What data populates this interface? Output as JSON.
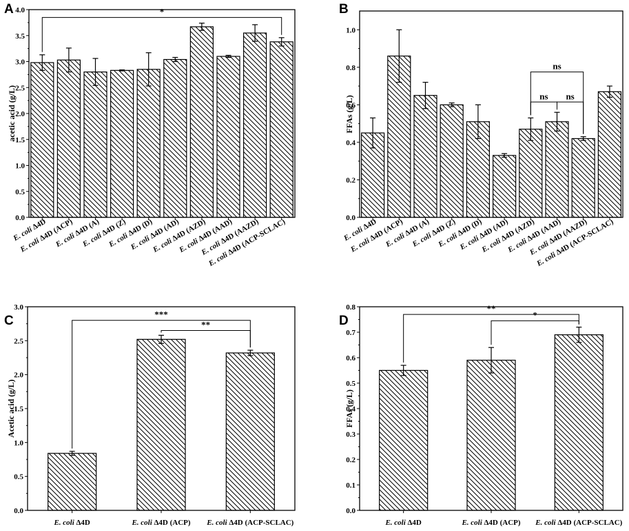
{
  "figure": {
    "palette": {
      "ink": "#000000",
      "background": "#ffffff"
    }
  },
  "chart_data": [
    {
      "panel": "A",
      "type": "bar",
      "ylabel": "acetic acid (g/L)",
      "ylim": [
        0,
        4.0
      ],
      "yticks": [
        "0.0",
        "0.5",
        "1.0",
        "1.5",
        "2.0",
        "2.5",
        "3.0",
        "3.5",
        "4.0"
      ],
      "categories": [
        {
          "italic": "E. coli",
          "rest": " Δ4D"
        },
        {
          "italic": "E. coli",
          "rest": " Δ4D (ACP)"
        },
        {
          "italic": "E. coli",
          "rest": " Δ4D (A)"
        },
        {
          "italic": "E. coli",
          "rest": " Δ4D (Z)"
        },
        {
          "italic": "E. coli",
          "rest": " Δ4D (D)"
        },
        {
          "italic": "E. coli",
          "rest": " Δ4D (AD)"
        },
        {
          "italic": "E. coli",
          "rest": " Δ4D (AZD)"
        },
        {
          "italic": "E. coli",
          "rest": " Δ4D (AAD)"
        },
        {
          "italic": "E. coli",
          "rest": " Δ4D (AAZD)"
        },
        {
          "italic": "E. coli",
          "rest": " Δ4D (ACP-SCLAC)"
        }
      ],
      "values": [
        2.98,
        3.03,
        2.8,
        2.83,
        2.85,
        3.04,
        3.67,
        3.1,
        3.55,
        3.38
      ],
      "errors": [
        0.15,
        0.23,
        0.26,
        0.01,
        0.32,
        0.04,
        0.07,
        0.02,
        0.16,
        0.08
      ],
      "significance": [
        {
          "from": 0,
          "to": 9,
          "label": "*",
          "y": 3.85
        }
      ]
    },
    {
      "panel": "B",
      "type": "bar",
      "ylabel": "FFAs (g/L)",
      "ylim": [
        0,
        1.1
      ],
      "yticks": [
        "0.0",
        "0.2",
        "0.4",
        "0.6",
        "0.8",
        "1.0"
      ],
      "categories": [
        {
          "italic": "E. coli",
          "rest": " Δ4D"
        },
        {
          "italic": "E. coli",
          "rest": " Δ4D (ACP)"
        },
        {
          "italic": "E. coli",
          "rest": " Δ4D (A)"
        },
        {
          "italic": "E. coli",
          "rest": " Δ4D (Z)"
        },
        {
          "italic": "E. coli",
          "rest": " Δ4D (D)"
        },
        {
          "italic": "E. coli",
          "rest": " Δ4D (AD)"
        },
        {
          "italic": "E. coli",
          "rest": " Δ4D (AZD)"
        },
        {
          "italic": "E. coli",
          "rest": " Δ4D (AAD)"
        },
        {
          "italic": "E. coli",
          "rest": " Δ4D (AAZD)"
        },
        {
          "italic": "E. coli",
          "rest": " Δ4D (ACP-SCLAC)"
        }
      ],
      "values": [
        0.45,
        0.86,
        0.65,
        0.6,
        0.51,
        0.33,
        0.47,
        0.51,
        0.42,
        0.67
      ],
      "errors": [
        0.08,
        0.14,
        0.07,
        0.01,
        0.09,
        0.01,
        0.06,
        0.05,
        0.01,
        0.03
      ],
      "significance": [
        {
          "from": 6,
          "to": 8,
          "label": "ns",
          "y": 0.775
        },
        {
          "from": 6,
          "to": 7,
          "label": "ns",
          "y": 0.615
        },
        {
          "from": 7,
          "to": 8,
          "label": "ns",
          "y": 0.615
        }
      ]
    },
    {
      "panel": "C",
      "type": "bar",
      "ylabel": "Acetic acid (g/L)",
      "ylim": [
        0,
        3.0
      ],
      "yticks": [
        "0.0",
        "0.5",
        "1.0",
        "1.5",
        "2.0",
        "2.5",
        "3.0"
      ],
      "categories": [
        {
          "italic": "E. coli",
          "rest": " Δ4D"
        },
        {
          "italic": "E. coli",
          "rest": " Δ4D (ACP)"
        },
        {
          "italic": "E. coli",
          "rest": " Δ4D (ACP-SCLAC)"
        }
      ],
      "values": [
        0.84,
        2.52,
        2.32
      ],
      "errors": [
        0.03,
        0.06,
        0.04
      ],
      "significance": [
        {
          "from": 0,
          "to": 2,
          "label": "***",
          "y": 2.8
        },
        {
          "from": 1,
          "to": 2,
          "label": "**",
          "y": 2.65
        }
      ]
    },
    {
      "panel": "D",
      "type": "bar",
      "ylabel": "FFAs (g/L)",
      "ylim": [
        0,
        0.8
      ],
      "yticks": [
        "0.0",
        "0.1",
        "0.2",
        "0.3",
        "0.4",
        "0.5",
        "0.6",
        "0.7",
        "0.8"
      ],
      "categories": [
        {
          "italic": "E. coli",
          "rest": " Δ4D"
        },
        {
          "italic": "E. coli",
          "rest": " Δ4D (ACP)"
        },
        {
          "italic": "E. coli",
          "rest": " Δ4D (ACP-SCLAC)"
        }
      ],
      "values": [
        0.55,
        0.59,
        0.69
      ],
      "errors": [
        0.02,
        0.05,
        0.03
      ],
      "significance": [
        {
          "from": 0,
          "to": 2,
          "label": "**",
          "y": 0.77
        },
        {
          "from": 1,
          "to": 2,
          "label": "*",
          "y": 0.745
        }
      ]
    }
  ]
}
